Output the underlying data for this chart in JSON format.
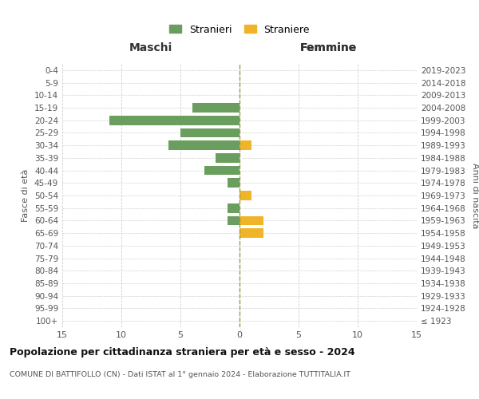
{
  "age_groups": [
    "100+",
    "95-99",
    "90-94",
    "85-89",
    "80-84",
    "75-79",
    "70-74",
    "65-69",
    "60-64",
    "55-59",
    "50-54",
    "45-49",
    "40-44",
    "35-39",
    "30-34",
    "25-29",
    "20-24",
    "15-19",
    "10-14",
    "5-9",
    "0-4"
  ],
  "birth_years": [
    "≤ 1923",
    "1924-1928",
    "1929-1933",
    "1934-1938",
    "1939-1943",
    "1944-1948",
    "1949-1953",
    "1954-1958",
    "1959-1963",
    "1964-1968",
    "1969-1973",
    "1974-1978",
    "1979-1983",
    "1984-1988",
    "1989-1993",
    "1994-1998",
    "1999-2003",
    "2004-2008",
    "2009-2013",
    "2014-2018",
    "2019-2023"
  ],
  "maschi": [
    0,
    0,
    0,
    0,
    0,
    0,
    0,
    0,
    1,
    1,
    0,
    1,
    3,
    2,
    6,
    5,
    11,
    4,
    0,
    0,
    0
  ],
  "femmine": [
    0,
    0,
    0,
    0,
    0,
    0,
    0,
    2,
    2,
    0,
    1,
    0,
    0,
    0,
    1,
    0,
    0,
    0,
    0,
    0,
    0
  ],
  "maschi_color": "#6a9e5e",
  "femmine_color": "#f0b429",
  "title": "Popolazione per cittadinanza straniera per età e sesso - 2024",
  "subtitle": "COMUNE DI BATTIFOLLO (CN) - Dati ISTAT al 1° gennaio 2024 - Elaborazione TUTTITALIA.IT",
  "legend_maschi": "Stranieri",
  "legend_femmine": "Straniere",
  "header_left": "Maschi",
  "header_right": "Femmine",
  "ylabel_left": "Fasce di età",
  "ylabel_right": "Anni di nascita",
  "xlim": 15,
  "background_color": "#ffffff",
  "grid_color": "#d0d0d0"
}
